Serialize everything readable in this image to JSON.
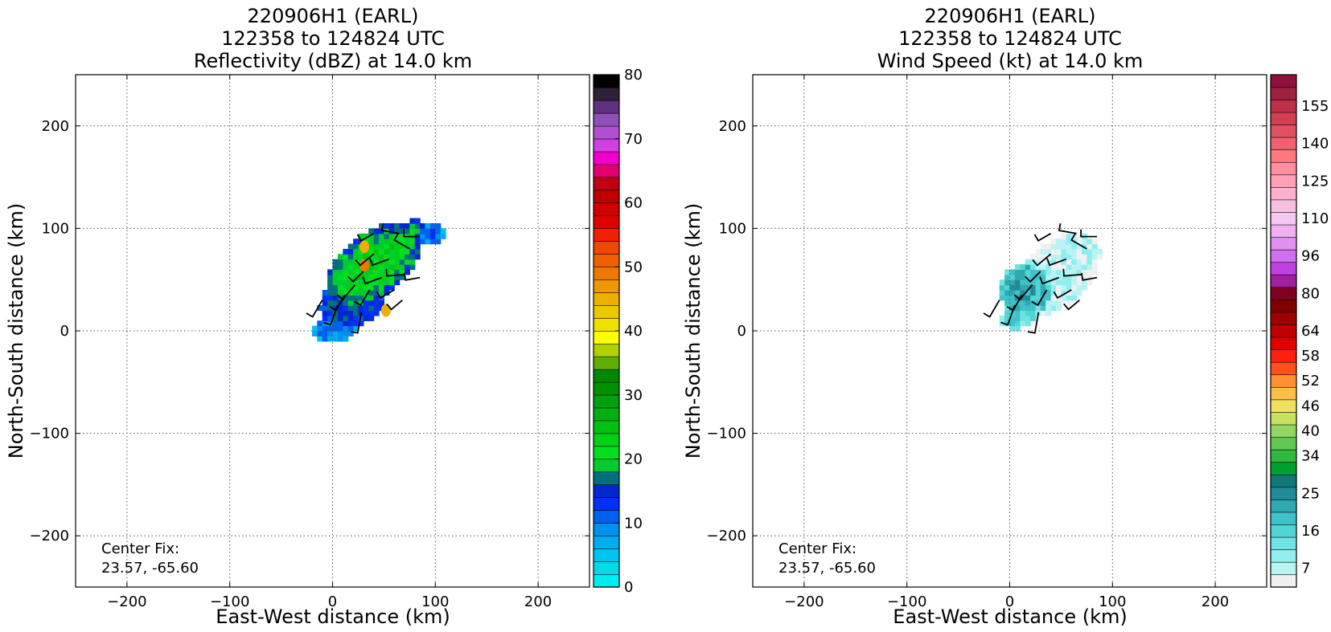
{
  "chart_data": [
    {
      "type": "heatmap",
      "title_lines": [
        "220906H1 (EARL)",
        "122358 to 124824 UTC",
        "Reflectivity (dBZ) at 14.0 km"
      ],
      "xlabel": "East-West distance (km)",
      "ylabel": "North-South distance (km)",
      "xlim": [
        -250,
        250
      ],
      "ylim": [
        -250,
        250
      ],
      "xticks": [
        -200,
        -100,
        0,
        100,
        200
      ],
      "yticks": [
        -200,
        -100,
        0,
        100,
        200
      ],
      "xticklabels": [
        "−200",
        "−100",
        "0",
        "100",
        "200"
      ],
      "yticklabels": [
        "−200",
        "−100",
        "0",
        "100",
        "200"
      ],
      "grid": true,
      "annotation_lines": [
        "Center Fix:",
        "23.57, -65.60"
      ],
      "colorbar": {
        "vmin": 0,
        "vmax": 80,
        "ticks": [
          0,
          10,
          20,
          30,
          40,
          50,
          60,
          70,
          80
        ],
        "ticklabels": [
          "0",
          "10",
          "20",
          "30",
          "40",
          "50",
          "60",
          "70",
          "80"
        ],
        "colors": [
          "#00eded",
          "#00dbe8",
          "#00c4f0",
          "#00acf0",
          "#0090f0",
          "#0060f0",
          "#0030f0",
          "#0028d0",
          "#007080",
          "#00cc30",
          "#00e020",
          "#00d018",
          "#00c010",
          "#00b010",
          "#00a010",
          "#009000",
          "#008800",
          "#60b000",
          "#b0d000",
          "#ffff00",
          "#f0e000",
          "#ecc800",
          "#ecb000",
          "#f09800",
          "#f07800",
          "#f06000",
          "#f04800",
          "#f02000",
          "#e00000",
          "#d00000",
          "#c00000",
          "#c00010",
          "#e00070",
          "#f000d0",
          "#d040e0",
          "#b050d0",
          "#9050b8",
          "#603080",
          "#302038",
          "#000000"
        ]
      },
      "field": {
        "note": "blob of reflectivity around storm center",
        "blobs": [
          {
            "cx": 40,
            "cy": 65,
            "rx": 55,
            "ry": 30,
            "angle": 40,
            "value": 11
          },
          {
            "cx": 20,
            "cy": 30,
            "rx": 35,
            "ry": 25,
            "angle": 30,
            "value": 8
          },
          {
            "cx": 5,
            "cy": 5,
            "rx": 25,
            "ry": 15,
            "angle": 20,
            "value": 5
          },
          {
            "cx": 60,
            "cy": 85,
            "rx": 35,
            "ry": 14,
            "angle": 35,
            "value": 10
          },
          {
            "cx": 95,
            "cy": 95,
            "rx": 14,
            "ry": 12,
            "angle": 0,
            "value": 5
          }
        ],
        "cores": [
          {
            "x": 31,
            "y": 82,
            "value": 22
          },
          {
            "x": 31,
            "y": 64,
            "value": 24
          },
          {
            "x": 52,
            "y": 20,
            "value": 22
          }
        ]
      }
    },
    {
      "type": "heatmap",
      "title_lines": [
        "220906H1 (EARL)",
        "122358 to 124824 UTC",
        "Wind Speed (kt) at 14.0 km"
      ],
      "xlabel": "East-West distance (km)",
      "ylabel": "North-South distance (km)",
      "xlim": [
        -250,
        250
      ],
      "ylim": [
        -250,
        250
      ],
      "xticks": [
        -200,
        -100,
        0,
        100,
        200
      ],
      "yticks": [
        -200,
        -100,
        0,
        100,
        200
      ],
      "xticklabels": [
        "−200",
        "−100",
        "0",
        "100",
        "200"
      ],
      "yticklabels": [
        "−200",
        "−100",
        "0",
        "100",
        "200"
      ],
      "grid": true,
      "annotation_lines": [
        "Center Fix:",
        "23.57, -65.60"
      ],
      "colorbar": {
        "ticklabels": [
          "7",
          "16",
          "25",
          "34",
          "40",
          "46",
          "52",
          "58",
          "64",
          "80",
          "96",
          "110",
          "125",
          "140",
          "155"
        ],
        "tick_bins": [
          1,
          4,
          7,
          10,
          12,
          14,
          16,
          18,
          20,
          23,
          26,
          29,
          32,
          35,
          38
        ],
        "colors": [
          "#f0f0f0",
          "#b8f4f4",
          "#90eeee",
          "#70e4e4",
          "#50d4d4",
          "#40c0c8",
          "#30a8b0",
          "#208c98",
          "#107878",
          "#00a030",
          "#30b840",
          "#60c850",
          "#90d860",
          "#c8e060",
          "#f0e060",
          "#f8c048",
          "#ff9030",
          "#ff5020",
          "#ff2010",
          "#e00000",
          "#c00000",
          "#a00000",
          "#800000",
          "#800020",
          "#a020a0",
          "#c040e0",
          "#d070f0",
          "#e090f0",
          "#f0b0f0",
          "#f4c8f0",
          "#f8c0e0",
          "#ffb0d0",
          "#ffa0b8",
          "#ff90a0",
          "#ff7880",
          "#f06070",
          "#e05060",
          "#d04050",
          "#c03048",
          "#a02040",
          "#901040"
        ]
      },
      "field": {
        "blobs": [
          {
            "cx": 45,
            "cy": 55,
            "rx": 50,
            "ry": 30,
            "angle": 40,
            "value": 1
          },
          {
            "cx": 15,
            "cy": 40,
            "rx": 25,
            "ry": 25,
            "angle": 20,
            "value": 6
          },
          {
            "cx": 10,
            "cy": 15,
            "rx": 20,
            "ry": 12,
            "angle": 20,
            "value": 4
          }
        ]
      }
    }
  ],
  "wind_barbs": [
    {
      "x": -10,
      "y": 30,
      "dir": 210,
      "len": 24
    },
    {
      "x": 5,
      "y": 25,
      "dir": 200,
      "len": 26
    },
    {
      "x": 12,
      "y": 35,
      "dir": 210,
      "len": 22
    },
    {
      "x": 28,
      "y": 18,
      "dir": 190,
      "len": 26
    },
    {
      "x": 22,
      "y": 45,
      "dir": 220,
      "len": 24
    },
    {
      "x": 36,
      "y": 40,
      "dir": 210,
      "len": 22
    },
    {
      "x": 48,
      "y": 52,
      "dir": 250,
      "len": 22
    },
    {
      "x": 60,
      "y": 40,
      "dir": 240,
      "len": 20
    },
    {
      "x": 70,
      "y": 55,
      "dir": 265,
      "len": 22
    },
    {
      "x": 85,
      "y": 52,
      "dir": 260,
      "len": 18
    },
    {
      "x": 40,
      "y": 75,
      "dir": 230,
      "len": 22
    },
    {
      "x": 55,
      "y": 70,
      "dir": 250,
      "len": 22
    },
    {
      "x": 75,
      "y": 80,
      "dir": 300,
      "len": 22
    },
    {
      "x": 65,
      "y": 95,
      "dir": 280,
      "len": 22
    },
    {
      "x": 85,
      "y": 92,
      "dir": 270,
      "len": 20
    },
    {
      "x": 40,
      "y": 95,
      "dir": 240,
      "len": 18
    },
    {
      "x": 30,
      "y": 58,
      "dir": 225,
      "len": 18
    },
    {
      "x": 68,
      "y": 30,
      "dir": 230,
      "len": 18
    }
  ]
}
